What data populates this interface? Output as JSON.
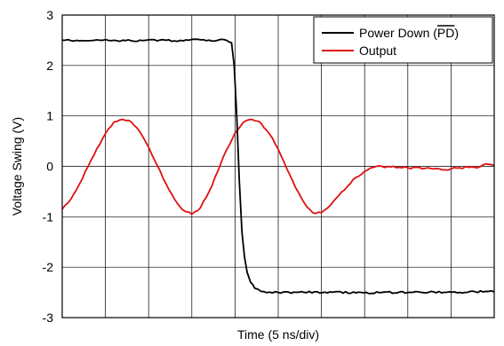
{
  "chart_data": {
    "type": "line",
    "title": "",
    "xlabel": "Time (5 ns/div)",
    "ylabel": "Voltage Swing (V)",
    "xlim": [
      0,
      50
    ],
    "ylim": [
      -3,
      3
    ],
    "x_divisions": 10,
    "y_ticks": [
      3,
      2,
      1,
      0,
      -1,
      -2,
      -3
    ],
    "y_tick_labels": [
      "3",
      "2",
      "1",
      "0",
      "-1",
      "-2",
      "-3"
    ],
    "grid": true,
    "legend_position": "top-right",
    "legend": {
      "pd_prefix": "Power Down (",
      "pd_overbar": "PD",
      "pd_suffix": ")",
      "output": "Output"
    },
    "series": [
      {
        "name": "Power Down (PD)",
        "color": "#000000",
        "x": [
          0,
          2,
          4,
          6,
          8,
          10,
          12,
          14,
          16,
          18,
          19,
          19.6,
          19.9,
          20.2,
          20.5,
          20.8,
          21.1,
          21.4,
          21.8,
          22.3,
          23,
          25,
          28,
          31,
          34,
          37,
          40,
          43,
          46,
          49,
          50
        ],
        "values": [
          2.5,
          2.49,
          2.51,
          2.5,
          2.49,
          2.51,
          2.5,
          2.49,
          2.51,
          2.5,
          2.5,
          2.45,
          2.0,
          1.0,
          -0.3,
          -1.3,
          -1.8,
          -2.1,
          -2.3,
          -2.42,
          -2.48,
          -2.5,
          -2.5,
          -2.49,
          -2.51,
          -2.5,
          -2.5,
          -2.49,
          -2.5,
          -2.48,
          -2.49
        ]
      },
      {
        "name": "Output",
        "color": "#e01010",
        "x": [
          0,
          1,
          2,
          3,
          4,
          5,
          6,
          7,
          8,
          9,
          10,
          11,
          12,
          13,
          14,
          15,
          16,
          17,
          18,
          19,
          20,
          21,
          22,
          23,
          24,
          25,
          26,
          27,
          28,
          29,
          30,
          31,
          32,
          33,
          34,
          35,
          36,
          37,
          38,
          39,
          40,
          41,
          42,
          43,
          44,
          45,
          46,
          47,
          48,
          49,
          50
        ],
        "values": [
          -0.85,
          -0.65,
          -0.35,
          0.0,
          0.35,
          0.65,
          0.88,
          0.93,
          0.88,
          0.68,
          0.38,
          0.02,
          -0.34,
          -0.65,
          -0.87,
          -0.95,
          -0.82,
          -0.5,
          -0.1,
          0.32,
          0.66,
          0.88,
          0.93,
          0.86,
          0.64,
          0.34,
          -0.05,
          -0.42,
          -0.72,
          -0.92,
          -0.92,
          -0.78,
          -0.58,
          -0.4,
          -0.22,
          -0.1,
          -0.02,
          0.0,
          -0.01,
          -0.02,
          -0.03,
          -0.02,
          -0.04,
          -0.05,
          -0.07,
          -0.05,
          -0.03,
          -0.02,
          -0.03,
          0.05,
          0.02
        ]
      }
    ]
  }
}
